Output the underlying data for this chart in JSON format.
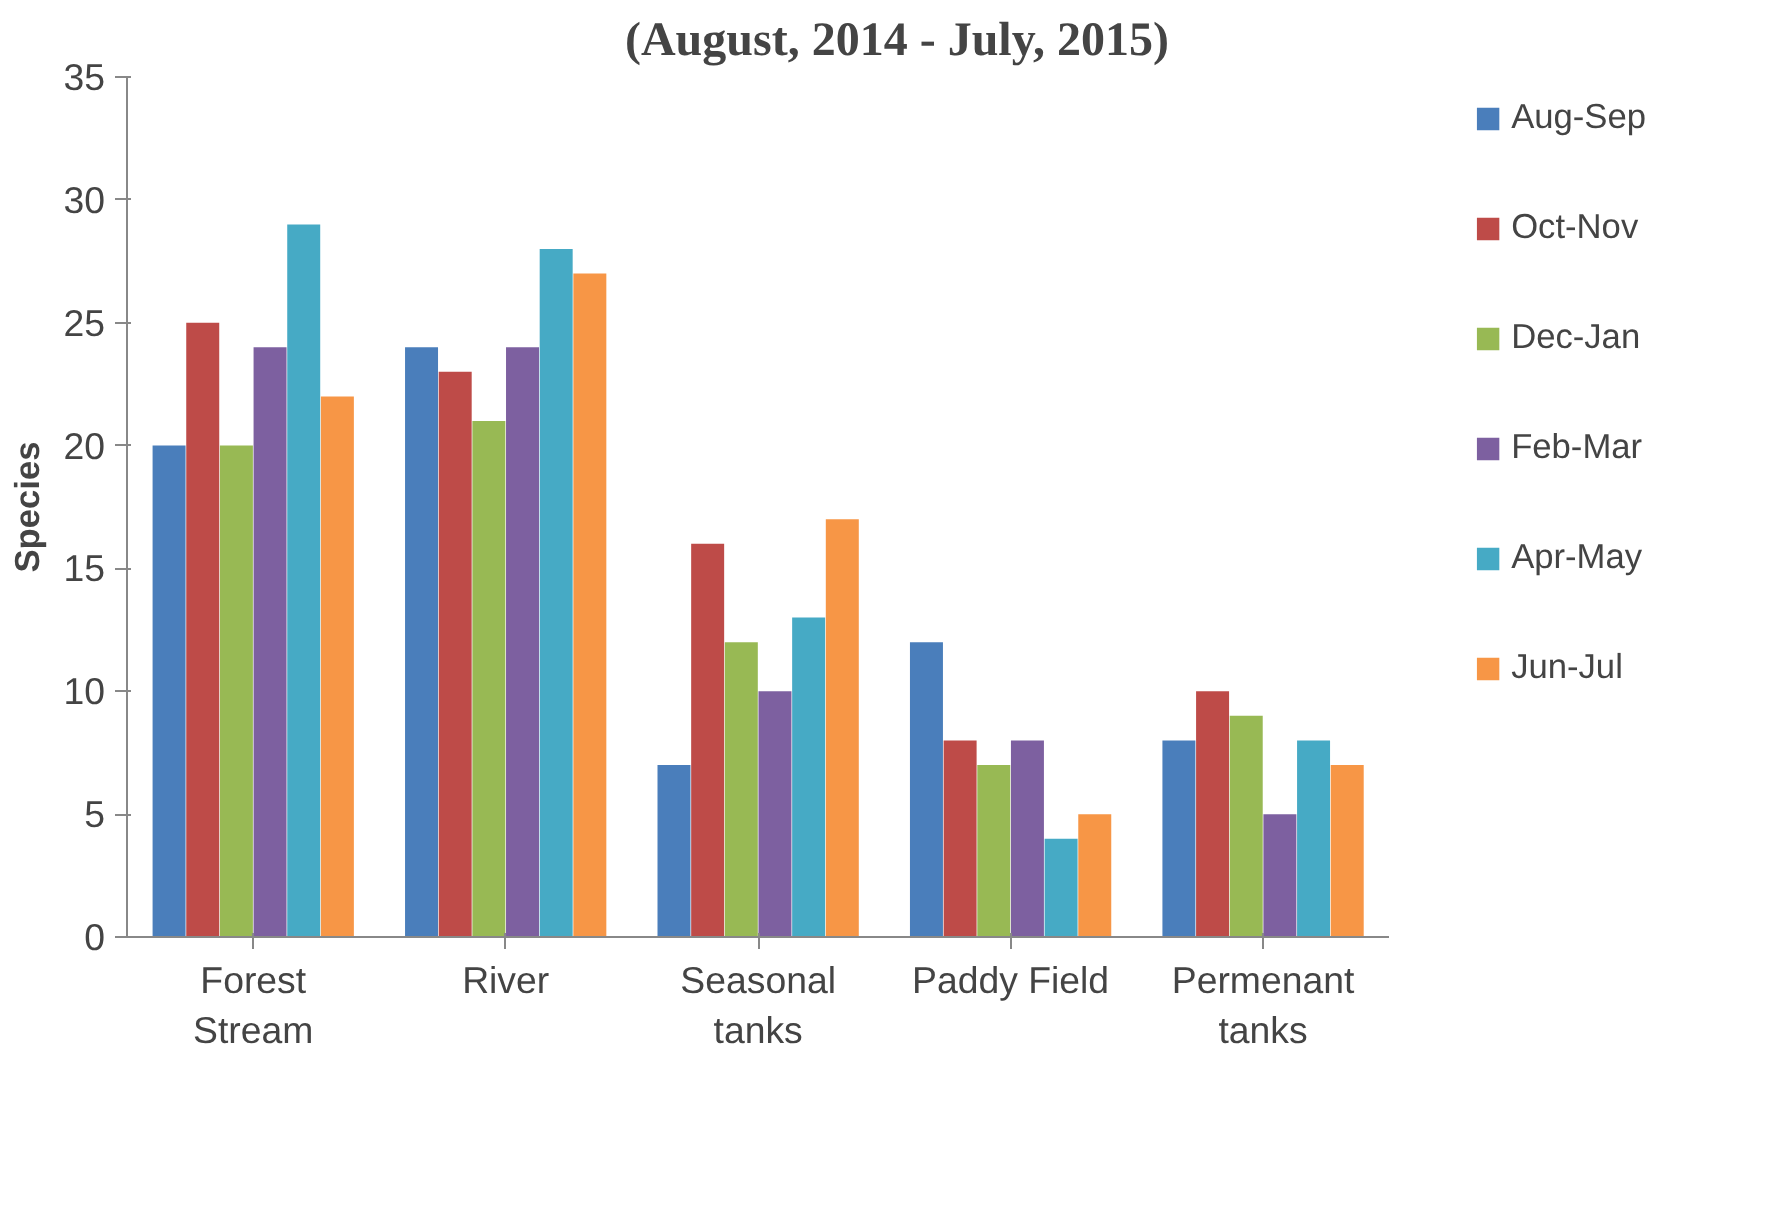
{
  "chart_data": {
    "type": "bar",
    "title": "(August, 2014 - July, 2015)",
    "ylabel": "Species",
    "categories": [
      "Forest\nStream",
      "River",
      "Seasonal\ntanks",
      "Paddy Field",
      "Permenant\ntanks"
    ],
    "series": [
      {
        "name": "Aug-Sep",
        "color": "#4a7ebb",
        "values": [
          20,
          24,
          7,
          12,
          8
        ]
      },
      {
        "name": "Oct-Nov",
        "color": "#be4b48",
        "values": [
          25,
          23,
          16,
          8,
          10
        ]
      },
      {
        "name": "Dec-Jan",
        "color": "#98b954",
        "values": [
          20,
          21,
          12,
          7,
          9
        ]
      },
      {
        "name": "Feb-Mar",
        "color": "#7d60a0",
        "values": [
          24,
          24,
          10,
          8,
          5
        ]
      },
      {
        "name": "Apr-May",
        "color": "#46aac5",
        "values": [
          29,
          28,
          13,
          4,
          8
        ]
      },
      {
        "name": "Jun-Jul",
        "color": "#f79646",
        "values": [
          22,
          27,
          17,
          5,
          7
        ]
      }
    ],
    "ylim": [
      0,
      35
    ],
    "yticks": [
      0,
      5,
      10,
      15,
      20,
      25,
      30,
      35
    ],
    "grid": false,
    "legend": "right"
  }
}
